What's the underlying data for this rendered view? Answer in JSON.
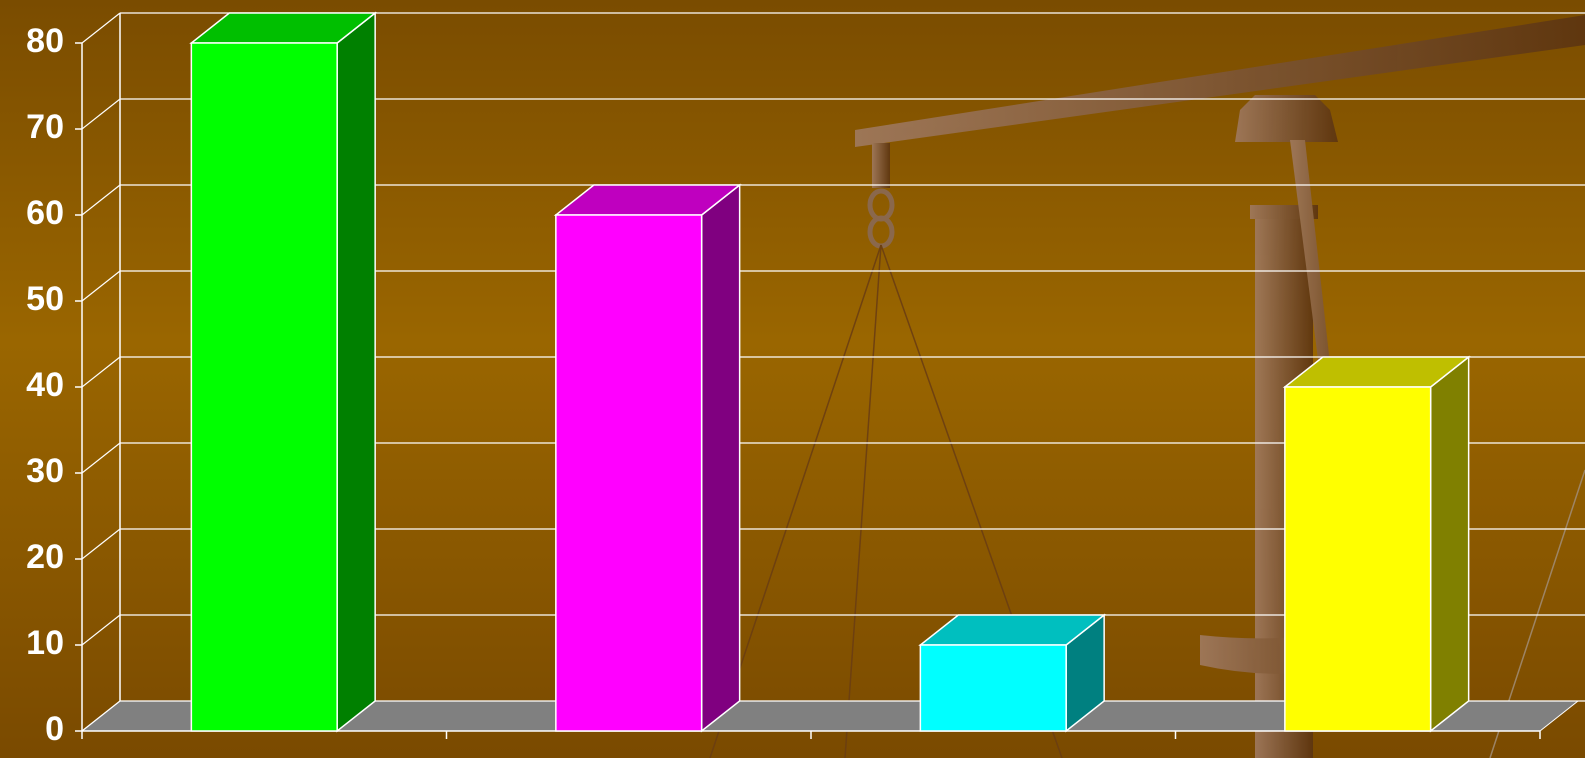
{
  "chart_data": {
    "type": "bar3d",
    "categories": [
      null,
      null,
      null,
      null
    ],
    "values": [
      80,
      60,
      10,
      40
    ],
    "colors": [
      "#00ff00",
      "#ff00ff",
      "#00ffff",
      "#ffff00"
    ],
    "ylim": [
      0,
      80
    ],
    "yticks": [
      0,
      10,
      20,
      30,
      40,
      50,
      60,
      70,
      80
    ],
    "grid": true
  }
}
